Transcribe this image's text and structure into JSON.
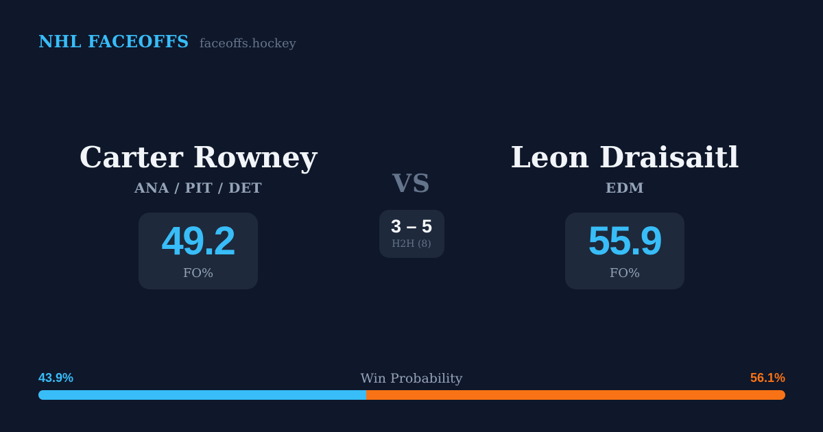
{
  "header": {
    "brand": "NHL FACEOFFS",
    "site": "faceoffs.hockey"
  },
  "players": {
    "left": {
      "name": "Carter Rowney",
      "teams": "ANA / PIT / DET",
      "fo_value": "49.2",
      "fo_label": "FO%"
    },
    "right": {
      "name": "Leon Draisaitl",
      "teams": "EDM",
      "fo_value": "55.9",
      "fo_label": "FO%"
    }
  },
  "center": {
    "vs": "VS",
    "h2h_score": "3 – 5",
    "h2h_label": "H2H (8)"
  },
  "win_probability": {
    "title": "Win Probability",
    "left_pct_label": "43.9%",
    "right_pct_label": "56.1%",
    "left_value": 43.9,
    "right_value": 56.1
  },
  "colors": {
    "background": "#0f172a",
    "card": "#1e293b",
    "accent_blue": "#38bdf8",
    "accent_orange": "#f97316",
    "name_text": "#f1f5f9",
    "muted_text": "#94a3b8",
    "faint_text": "#64748b"
  }
}
